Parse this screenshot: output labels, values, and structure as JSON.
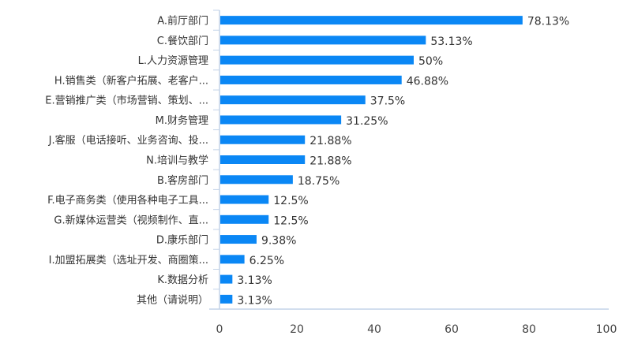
{
  "chart_data": {
    "type": "bar",
    "orientation": "horizontal",
    "categories": [
      "A.前厅部门",
      "C.餐饮部门",
      "L.人力资源管理",
      "H.销售类（新客户拓展、老客户...",
      "E.营销推广类（市场营销、策划、...",
      "M.财务管理",
      "J.客服（电话接听、业务咨询、投...",
      "N.培训与教学",
      "B.客房部门",
      "F.电子商务类（使用各种电子工具...",
      "G.新媒体运营类（视频制作、直...",
      "D.康乐部门",
      "I.加盟拓展类（选址开发、商圈策...",
      "K.数据分析",
      "其他（请说明）"
    ],
    "values": [
      78.13,
      53.13,
      50,
      46.88,
      37.5,
      31.25,
      21.88,
      21.88,
      18.75,
      12.5,
      12.5,
      9.38,
      6.25,
      3.13,
      3.13
    ],
    "data_labels": [
      "78.13%",
      "53.13%",
      "50%",
      "46.88%",
      "37.5%",
      "31.25%",
      "21.88%",
      "21.88%",
      "18.75%",
      "12.5%",
      "12.5%",
      "9.38%",
      "6.25%",
      "3.13%",
      "3.13%"
    ],
    "xlim": [
      0,
      100
    ],
    "x_ticks": [
      "0",
      "20",
      "40",
      "60",
      "80",
      "100"
    ],
    "grid": false,
    "bar_color": "#0A87F5",
    "axis_color": "#C3D3E8"
  }
}
